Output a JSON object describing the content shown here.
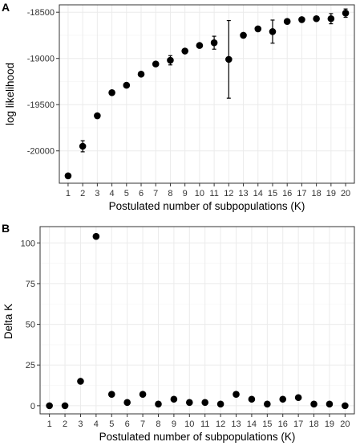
{
  "chart_data": [
    {
      "type": "scatter",
      "panel_label": "A",
      "xlabel": "Postulated number of subpopulations (K)",
      "ylabel": "log likelihood",
      "categories": [
        "1",
        "2",
        "3",
        "4",
        "5",
        "6",
        "7",
        "8",
        "9",
        "10",
        "11",
        "12",
        "13",
        "14",
        "15",
        "16",
        "17",
        "18",
        "19",
        "20"
      ],
      "y_tick_labels": [
        "-18500",
        "-19000",
        "-19500",
        "-20000"
      ],
      "y_ticks": [
        -18500,
        -19000,
        -19500,
        -20000
      ],
      "ylim": [
        -20350,
        -18420
      ],
      "grid": true,
      "series": [
        {
          "values": [
            -20270,
            -19950,
            -19620,
            -19370,
            -19290,
            -19170,
            -19060,
            -19020,
            -18920,
            -18860,
            -18830,
            -19010,
            -18750,
            -18680,
            -18710,
            -18600,
            -18580,
            -18570,
            -18570,
            -18510
          ],
          "errors": [
            10,
            60,
            20,
            15,
            15,
            15,
            15,
            50,
            15,
            15,
            70,
            420,
            20,
            20,
            125,
            20,
            15,
            15,
            55,
            45
          ]
        }
      ]
    },
    {
      "type": "scatter",
      "panel_label": "B",
      "xlabel": "Postulated number of subpopulations (K)",
      "ylabel": "Delta K",
      "categories": [
        "1",
        "2",
        "3",
        "4",
        "5",
        "6",
        "7",
        "8",
        "9",
        "10",
        "11",
        "12",
        "13",
        "14",
        "15",
        "16",
        "17",
        "18",
        "19",
        "20"
      ],
      "y_tick_labels": [
        "100",
        "75",
        "50",
        "25",
        "0"
      ],
      "y_ticks": [
        100,
        75,
        50,
        25,
        0
      ],
      "ylim": [
        -5,
        110
      ],
      "grid": true,
      "series": [
        {
          "values": [
            0,
            0,
            15,
            104,
            7,
            2,
            7,
            1,
            4,
            2,
            2,
            1,
            7,
            4,
            1,
            4,
            5,
            1,
            1,
            0
          ]
        }
      ]
    }
  ]
}
